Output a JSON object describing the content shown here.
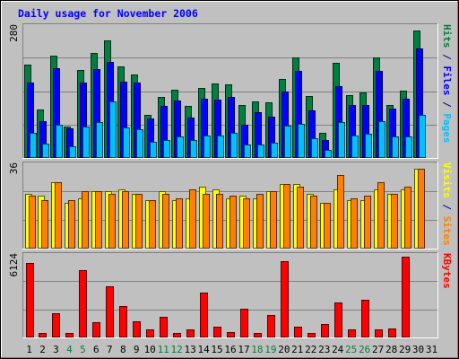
{
  "chart_data": {
    "type": "bar",
    "title": "Daily usage for November 2006",
    "categories": [
      "1",
      "2",
      "3",
      "4",
      "5",
      "6",
      "7",
      "8",
      "9",
      "10",
      "11",
      "12",
      "13",
      "14",
      "15",
      "16",
      "17",
      "18",
      "19",
      "20",
      "21",
      "22",
      "23",
      "24",
      "25",
      "26",
      "27",
      "28",
      "29",
      "30",
      "31"
    ],
    "weekend_days": [
      "4",
      "5",
      "11",
      "12",
      "18",
      "19",
      "25",
      "26"
    ],
    "panels": [
      {
        "id": "hits_files_pages",
        "ymax_label": "280",
        "ymax": 280,
        "side_labels": [
          {
            "text": "Pages",
            "color": "#00c0ff"
          },
          {
            "text": " / ",
            "color": "#000080"
          },
          {
            "text": "Files",
            "color": "#0000ff"
          },
          {
            "text": " / ",
            "color": "#000080"
          },
          {
            "text": "Hits",
            "color": "#008040"
          }
        ],
        "series": [
          {
            "name": "Hits",
            "color": "#008040",
            "values": [
              201,
              104,
              221,
              67,
              190,
              225,
              252,
              197,
              180,
              93,
              131,
              146,
              112,
              151,
              161,
              158,
              114,
              122,
              120,
              169,
              217,
              133,
              55,
              205,
              135,
              141,
              216,
              113,
              144,
              274
            ]
          },
          {
            "name": "Files",
            "color": "#0000ff",
            "values": [
              162,
              79,
              194,
              64,
              162,
              192,
              207,
              164,
              162,
              85,
              112,
              124,
              86,
              128,
              125,
              131,
              71,
              98,
              89,
              142,
              187,
              102,
              39,
              155,
              114,
              113,
              187,
              106,
              128,
              235
            ]
          },
          {
            "name": "Pages",
            "color": "#00c0ff",
            "values": [
              55,
              30,
              71,
              26,
              68,
              77,
              121,
              65,
              61,
              34,
              39,
              46,
              39,
              49,
              48,
              55,
              29,
              29,
              33,
              70,
              73,
              43,
              17,
              78,
              49,
              52,
              79,
              47,
              47,
              92
            ]
          }
        ]
      },
      {
        "id": "visits_sites",
        "ymax_label": "36",
        "ymax": 36,
        "side_labels": [
          {
            "text": "Sites",
            "color": "#ff8000"
          },
          {
            "text": " / ",
            "color": "#000080"
          },
          {
            "text": "Visits",
            "color": "#ffff00"
          }
        ],
        "series": [
          {
            "name": "Visits",
            "color": "#ffff00",
            "values": [
              24,
              23,
              29,
              20,
              22,
              25,
              25,
              26,
              24,
              21,
              25,
              21,
              22,
              27,
              26,
              22,
              23,
              22,
              25,
              28,
              28,
              24,
              20,
              26,
              21,
              21,
              26,
              24,
              26,
              35
            ]
          },
          {
            "name": "Sites",
            "color": "#ff8000",
            "values": [
              23,
              21,
              29,
              21,
              25,
              25,
              24,
              25,
              24,
              21,
              24,
              22,
              26,
              24,
              24,
              23,
              22,
              24,
              25,
              28,
              27,
              23,
              20,
              32,
              22,
              23,
              29,
              24,
              27,
              35
            ]
          }
        ]
      },
      {
        "id": "kbytes",
        "ymax_label": "6124",
        "ymax": 6124,
        "side_labels": [
          {
            "text": "KBytes",
            "color": "#ff0000"
          }
        ],
        "series": [
          {
            "name": "KBytes",
            "color": "#ff0000",
            "values": [
              5640,
              310,
              1845,
              310,
              5126,
              1157,
              3855,
              2384,
              1191,
              586,
              1593,
              373,
              639,
              3402,
              848,
              396,
              2160,
              362,
              1702,
              5811,
              787,
              310,
              1008,
              2646,
              621,
              2844,
              612,
              651,
              6124,
              0
            ]
          }
        ]
      }
    ]
  }
}
